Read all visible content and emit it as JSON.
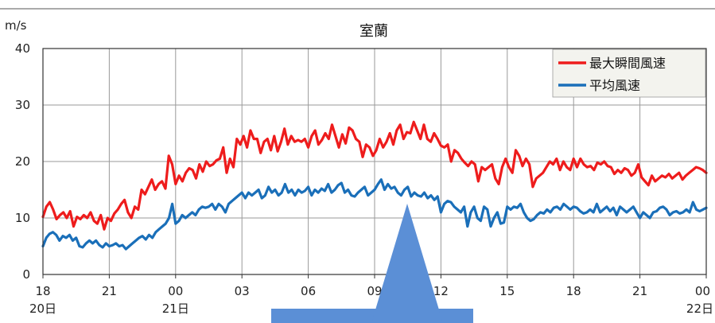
{
  "chart_data": {
    "type": "line",
    "title": "室蘭",
    "ylabel": "m/s",
    "ylim": [
      0,
      40
    ],
    "yticks": [
      "0",
      "10",
      "20",
      "30",
      "40"
    ],
    "xticks": [
      {
        "hour": "18",
        "day": "20日"
      },
      {
        "hour": "21",
        "day": ""
      },
      {
        "hour": "00",
        "day": "21日"
      },
      {
        "hour": "03",
        "day": ""
      },
      {
        "hour": "06",
        "day": ""
      },
      {
        "hour": "09",
        "day": ""
      },
      {
        "hour": "12",
        "day": ""
      },
      {
        "hour": "15",
        "day": ""
      },
      {
        "hour": "18",
        "day": ""
      },
      {
        "hour": "21",
        "day": ""
      },
      {
        "hour": "00",
        "day": "22日"
      }
    ],
    "legend_position": "top-right",
    "series": [
      {
        "name": "最大瞬間風速",
        "color": "#ee1c1c",
        "values": [
          10.2,
          12.0,
          12.8,
          11.5,
          9.8,
          10.5,
          11.0,
          10.0,
          11.2,
          8.5,
          10.2,
          9.8,
          10.5,
          10.0,
          11.0,
          9.5,
          9.0,
          10.5,
          8.0,
          10.0,
          9.5,
          10.8,
          11.5,
          12.5,
          13.2,
          11.0,
          10.0,
          12.0,
          11.5,
          15.0,
          14.2,
          15.5,
          16.8,
          15.0,
          16.0,
          16.5,
          15.2,
          21.0,
          19.5,
          16.0,
          17.5,
          16.5,
          18.0,
          18.8,
          18.5,
          17.0,
          19.5,
          18.2,
          20.0,
          19.2,
          19.5,
          20.2,
          20.5,
          22.5,
          18.0,
          20.5,
          19.0,
          24.0,
          23.0,
          24.5,
          22.5,
          25.5,
          24.0,
          24.0,
          21.5,
          23.5,
          24.0,
          22.0,
          24.5,
          21.8,
          23.5,
          25.8,
          23.0,
          24.5,
          23.5,
          23.8,
          23.5,
          24.0,
          22.5,
          24.5,
          25.5,
          23.0,
          23.8,
          25.0,
          24.0,
          26.5,
          24.5,
          22.5,
          24.8,
          23.2,
          26.0,
          25.5,
          24.0,
          23.5,
          20.8,
          23.0,
          22.5,
          21.0,
          22.0,
          24.0,
          22.5,
          23.5,
          25.0,
          23.0,
          25.5,
          26.5,
          24.0,
          25.2,
          25.0,
          27.0,
          25.5,
          24.0,
          26.5,
          24.0,
          23.5,
          25.0,
          24.0,
          22.8,
          22.5,
          23.0,
          20.0,
          22.0,
          21.5,
          20.5,
          19.8,
          19.2,
          20.0,
          19.5,
          16.5,
          19.0,
          18.5,
          19.0,
          19.5,
          17.0,
          16.0,
          19.0,
          20.5,
          19.0,
          18.0,
          22.0,
          21.0,
          19.2,
          20.5,
          19.5,
          15.5,
          17.0,
          17.5,
          18.0,
          19.0,
          20.0,
          19.5,
          20.5,
          18.5,
          20.0,
          19.0,
          18.5,
          20.5,
          19.0,
          20.5,
          19.5,
          19.0,
          19.2,
          18.5,
          19.8,
          19.5,
          20.0,
          19.2,
          19.0,
          17.8,
          18.5,
          18.0,
          18.8,
          18.5,
          17.5,
          18.0,
          19.5,
          17.2,
          16.5,
          15.8,
          17.5,
          16.5,
          17.0,
          17.5,
          17.2,
          17.8,
          17.0,
          17.5,
          18.0,
          16.8,
          17.5,
          18.0,
          18.5,
          19.0,
          18.8,
          18.5,
          18.0
        ]
      },
      {
        "name": "平均風速",
        "color": "#1a6fb9",
        "values": [
          5.0,
          6.5,
          7.2,
          7.5,
          7.0,
          6.0,
          6.8,
          6.5,
          7.0,
          6.0,
          6.5,
          5.0,
          4.8,
          5.5,
          6.0,
          5.5,
          6.0,
          5.2,
          4.8,
          5.5,
          5.0,
          5.2,
          5.5,
          5.0,
          5.2,
          4.5,
          5.0,
          5.5,
          6.0,
          6.5,
          6.8,
          6.2,
          7.0,
          6.5,
          7.5,
          8.0,
          8.5,
          9.0,
          10.0,
          12.5,
          9.0,
          9.5,
          10.5,
          10.0,
          10.5,
          11.0,
          10.5,
          11.5,
          12.0,
          11.8,
          12.0,
          12.5,
          11.5,
          12.5,
          12.0,
          11.0,
          12.5,
          13.0,
          13.5,
          14.0,
          14.5,
          13.5,
          14.5,
          14.0,
          14.5,
          15.0,
          13.5,
          14.0,
          15.5,
          14.5,
          15.0,
          14.0,
          14.5,
          16.0,
          14.5,
          15.0,
          14.0,
          15.0,
          14.5,
          14.8,
          15.5,
          14.0,
          15.0,
          14.5,
          15.2,
          14.8,
          16.0,
          14.5,
          15.0,
          15.8,
          16.2,
          14.5,
          15.0,
          14.0,
          13.8,
          14.5,
          15.0,
          15.5,
          14.0,
          14.5,
          15.0,
          16.0,
          16.8,
          15.0,
          16.0,
          15.2,
          15.5,
          14.5,
          14.0,
          15.0,
          15.5,
          13.8,
          14.5,
          14.0,
          13.8,
          14.5,
          13.5,
          14.0,
          13.2,
          13.8,
          11.0,
          12.5,
          13.0,
          12.8,
          12.0,
          11.5,
          11.0,
          12.0,
          8.5,
          11.0,
          12.0,
          10.0,
          9.5,
          12.0,
          11.5,
          8.5,
          10.0,
          11.0,
          9.0,
          9.2,
          12.0,
          11.5,
          12.0,
          11.8,
          12.5,
          11.0,
          10.0,
          9.5,
          9.8,
          10.5,
          11.0,
          10.8,
          11.5,
          11.0,
          11.8,
          12.0,
          11.5,
          12.5,
          12.0,
          11.5,
          12.0,
          11.8,
          11.2,
          10.8,
          11.0,
          11.5,
          11.0,
          12.5,
          11.0,
          11.5,
          12.0,
          11.2,
          11.8,
          10.5,
          12.0,
          11.5,
          11.0,
          11.5,
          12.0,
          11.0,
          10.0,
          11.0,
          10.5,
          10.0,
          11.0,
          11.2,
          11.8,
          12.0,
          11.5,
          10.5,
          11.0,
          11.2,
          10.8,
          11.0,
          11.5,
          11.0,
          12.8,
          11.5,
          11.2,
          11.5,
          11.8
        ]
      }
    ]
  }
}
